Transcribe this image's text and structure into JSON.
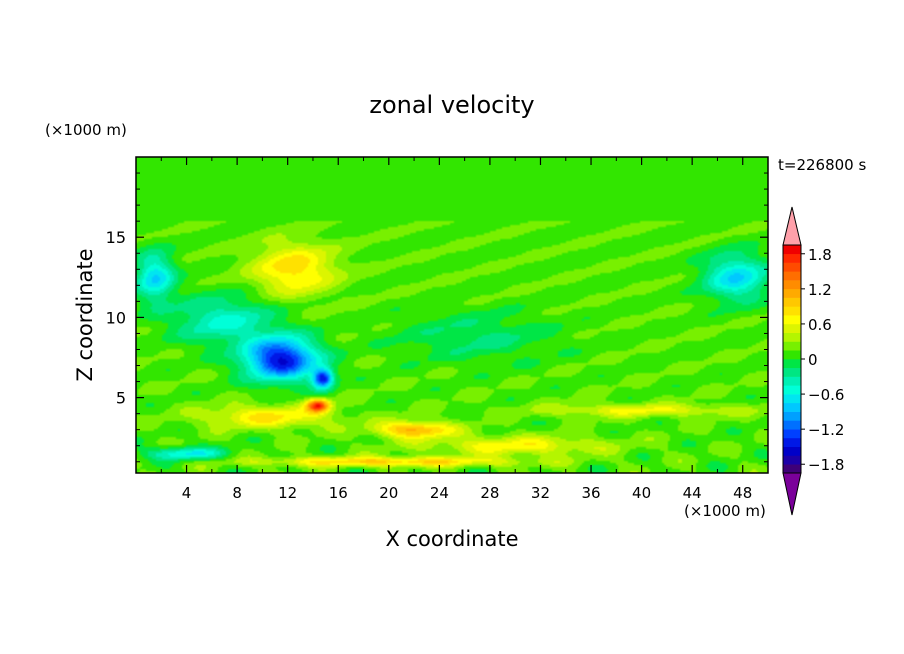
{
  "chart_data": {
    "type": "heatmap",
    "title": "zonal velocity",
    "xlabel": "X coordinate",
    "ylabel": "Z coordinate",
    "x_unit_label": "(×1000 m)",
    "y_unit_label": "(×1000 m)",
    "time_label": "t=226800 s",
    "xlim": [
      0,
      50
    ],
    "ylim": [
      0.3,
      20
    ],
    "x_ticks": [
      4,
      8,
      12,
      16,
      20,
      24,
      28,
      32,
      36,
      40,
      44,
      48
    ],
    "y_ticks": [
      5,
      10,
      15
    ],
    "x_tick_labels": [
      "4",
      "8",
      "12",
      "16",
      "20",
      "24",
      "28",
      "32",
      "36",
      "40",
      "44",
      "48"
    ],
    "y_tick_labels": [
      "5",
      "10",
      "15"
    ],
    "colorbar": {
      "levels": [
        -2.1,
        -1.95,
        -1.8,
        -1.65,
        -1.5,
        -1.35,
        -1.2,
        -1.05,
        -0.9,
        -0.75,
        -0.6,
        -0.45,
        -0.3,
        -0.15,
        0,
        0.15,
        0.3,
        0.45,
        0.6,
        0.75,
        0.9,
        1.05,
        1.2,
        1.35,
        1.5,
        1.65,
        1.8,
        1.95,
        2.1
      ],
      "colors": [
        "#7a009a",
        "#3e0078",
        "#1c00a8",
        "#0000c8",
        "#0018e6",
        "#0040ff",
        "#0070ff",
        "#00a0ff",
        "#00c8ff",
        "#00e6f0",
        "#00ffd8",
        "#00f0b4",
        "#00e682",
        "#00e646",
        "#32e600",
        "#78f000",
        "#b4f500",
        "#dcf500",
        "#ffff00",
        "#ffe100",
        "#ffc800",
        "#ffaa00",
        "#ff8c00",
        "#ff6e00",
        "#ff4b00",
        "#ff2800",
        "#f00000",
        "#ffa0aa"
      ],
      "tick_values": [
        1.8,
        1.2,
        0.6,
        0,
        -0.6,
        -1.2,
        -1.8
      ],
      "tick_labels": [
        "1.8",
        "1.2",
        "0.6",
        "0",
        "−0.6",
        "−1.2",
        "−1.8"
      ]
    },
    "features": [
      {
        "x": 25,
        "z": 12,
        "u": 0.12,
        "sx": 30,
        "sz": 6,
        "note": "background"
      },
      {
        "x": 12.5,
        "z": 13.0,
        "u": 0.75,
        "sx": 3.2,
        "sz": 1.6
      },
      {
        "x": 11.5,
        "z": 7.4,
        "u": -1.65,
        "sx": 2.8,
        "sz": 1.3
      },
      {
        "x": 14.8,
        "z": 6.2,
        "u": -1.5,
        "sx": 0.8,
        "sz": 0.6
      },
      {
        "x": 14.4,
        "z": 4.5,
        "u": 1.5,
        "sx": 0.9,
        "sz": 0.4
      },
      {
        "x": 10.5,
        "z": 3.8,
        "u": 0.65,
        "sx": 5,
        "sz": 0.7
      },
      {
        "x": 22,
        "z": 3.0,
        "u": 1.0,
        "sx": 3,
        "sz": 0.5
      },
      {
        "x": 30,
        "z": 2.0,
        "u": 0.55,
        "sx": 7,
        "sz": 0.6
      },
      {
        "x": 4,
        "z": 1.5,
        "u": -0.75,
        "sx": 3,
        "sz": 0.4
      },
      {
        "x": 1.5,
        "z": 12.5,
        "u": -0.85,
        "sx": 1.5,
        "sz": 1.5
      },
      {
        "x": 47.5,
        "z": 12.5,
        "u": -0.85,
        "sx": 2.5,
        "sz": 1.4
      },
      {
        "x": 7,
        "z": 9.8,
        "u": -0.6,
        "sx": 4,
        "sz": 1.5
      },
      {
        "x": 27,
        "z": 8.8,
        "u": -0.3,
        "sx": 6,
        "sz": 1.5
      },
      {
        "x": 40,
        "z": 4.2,
        "u": 0.5,
        "sx": 8,
        "sz": 0.4
      },
      {
        "x": 20,
        "z": 1.0,
        "u": 0.8,
        "sx": 10,
        "sz": 0.3
      }
    ]
  }
}
